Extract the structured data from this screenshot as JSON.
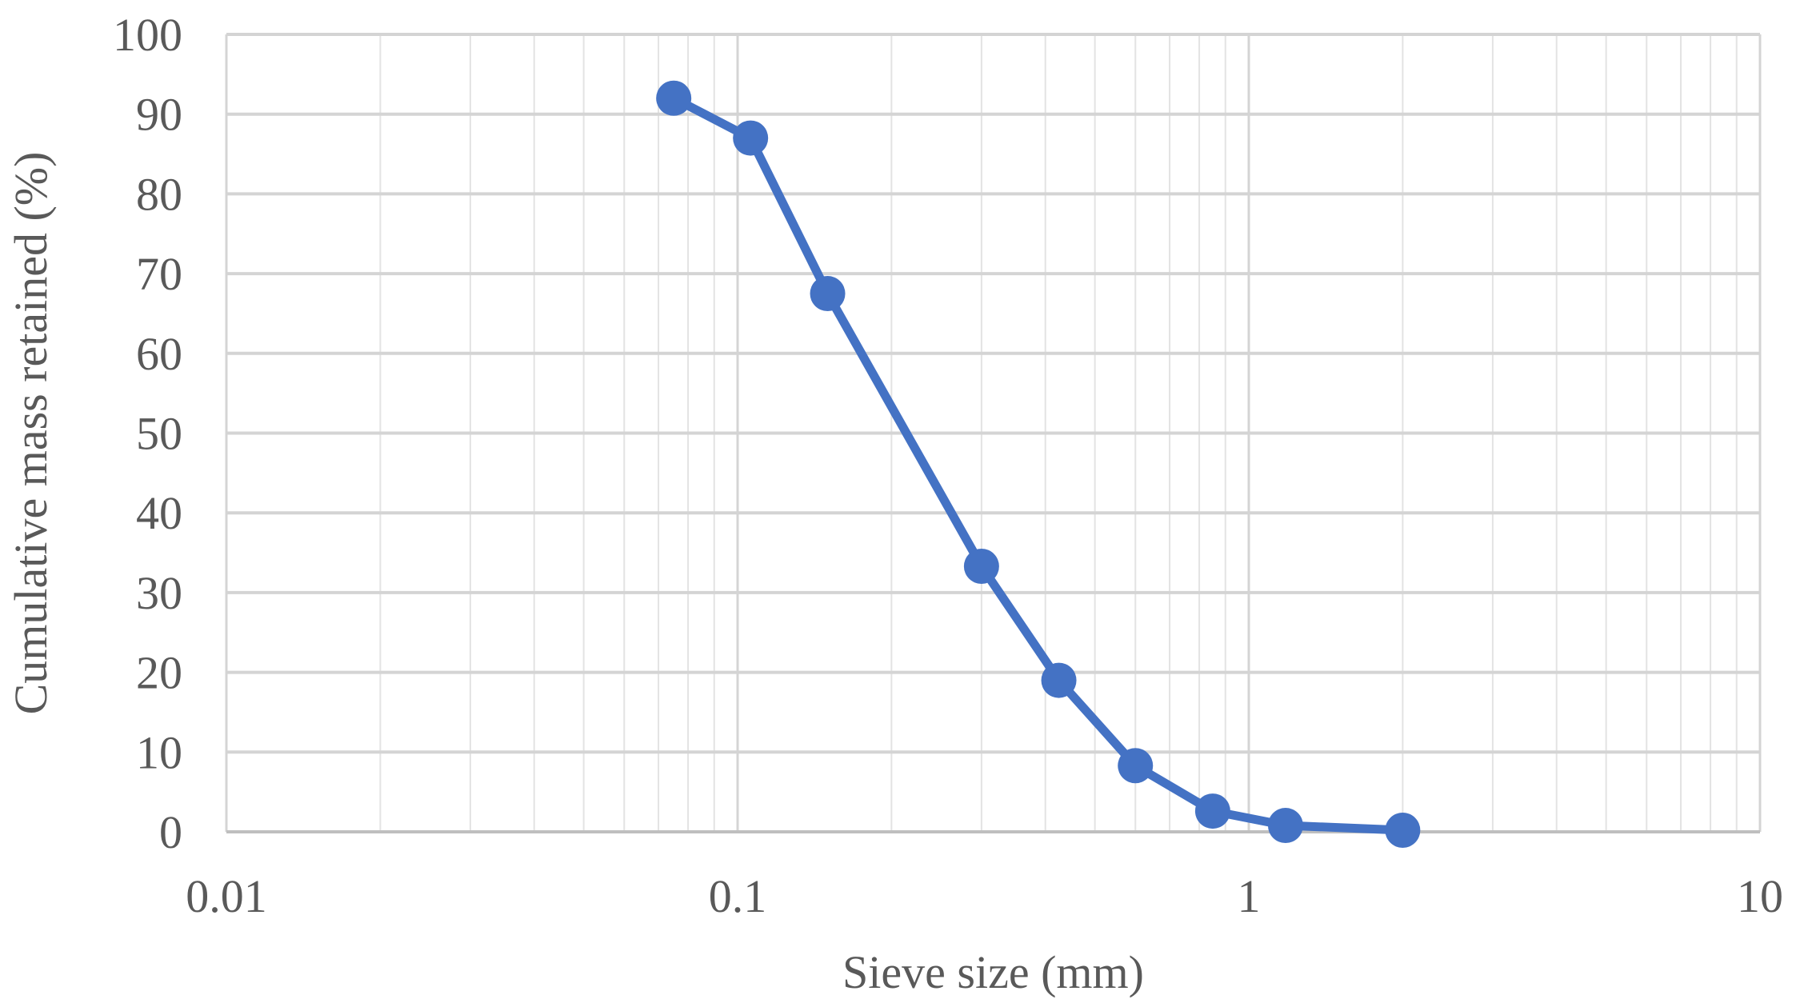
{
  "chart_data": {
    "type": "line",
    "title": "",
    "xlabel": "Sieve size (mm)",
    "ylabel": "Cumulative mass retained (%)",
    "x_scale": "log",
    "xlim": [
      0.01,
      10
    ],
    "ylim": [
      0,
      100
    ],
    "x_ticks": [
      0.01,
      0.1,
      1,
      10
    ],
    "x_tick_labels": [
      "0.01",
      "0.1",
      "1",
      "10"
    ],
    "y_ticks": [
      0,
      10,
      20,
      30,
      40,
      50,
      60,
      70,
      80,
      90,
      100
    ],
    "y_tick_labels": [
      "0",
      "10",
      "20",
      "30",
      "40",
      "50",
      "60",
      "70",
      "80",
      "90",
      "100"
    ],
    "grid": true,
    "minor_grid": true,
    "legend": "none",
    "series": [
      {
        "color": "#4472C4",
        "marker": "circle",
        "x": [
          0.075,
          0.106,
          0.15,
          0.3,
          0.425,
          0.6,
          0.85,
          1.18,
          2.0
        ],
        "y": [
          92,
          87,
          67.5,
          33.3,
          19,
          8.3,
          2.6,
          0.8,
          0.2
        ]
      }
    ]
  }
}
